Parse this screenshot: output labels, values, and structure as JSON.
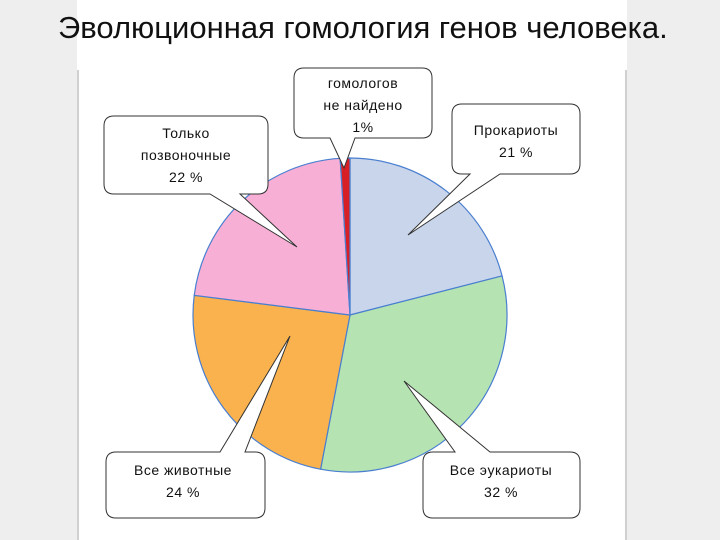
{
  "slide": {
    "title": "Эволюционная гомология генов человека."
  },
  "colors": {
    "prokaryotes": "#c9d5ea",
    "eukaryotes": "#b5e3b1",
    "animals": "#f9b24e",
    "vertebrates": "#f7afd5",
    "not_found": "#d81f26",
    "outline": "#4a7fd0"
  },
  "chart_data": {
    "type": "pie",
    "title": "Эволюционная гомология генов человека.",
    "slices": [
      {
        "label": "Прокариоты",
        "value": 21,
        "value_label": "21 %",
        "color": "#c9d5ea"
      },
      {
        "label": "Все эукариоты",
        "value": 32,
        "value_label": "32 %",
        "color": "#b5e3b1"
      },
      {
        "label": "Все животные",
        "value": 24,
        "value_label": "24 %",
        "color": "#f9b24e"
      },
      {
        "label": "Только позвоночные",
        "value": 22,
        "value_label": "22 %",
        "color": "#f7afd5"
      },
      {
        "label": "гомологов не найдено",
        "value": 1,
        "value_label": "1%",
        "color": "#d81f26"
      }
    ],
    "start": "12 o'clock",
    "direction": "clockwise",
    "legend": "none",
    "labels": "callouts"
  },
  "callouts": {
    "prokaryotes": {
      "line1": "Прокариоты",
      "line2": "21 %"
    },
    "eukaryotes": {
      "line1": "Все эукариоты",
      "line2": "32 %"
    },
    "animals": {
      "line1": "Все животные",
      "line2": "24 %"
    },
    "vertebrates": {
      "line1": "Только",
      "line2": "позвоночные",
      "line3": "22 %"
    },
    "not_found": {
      "line1": "гомологов",
      "line2": "не найдено",
      "line3": "1%"
    }
  }
}
